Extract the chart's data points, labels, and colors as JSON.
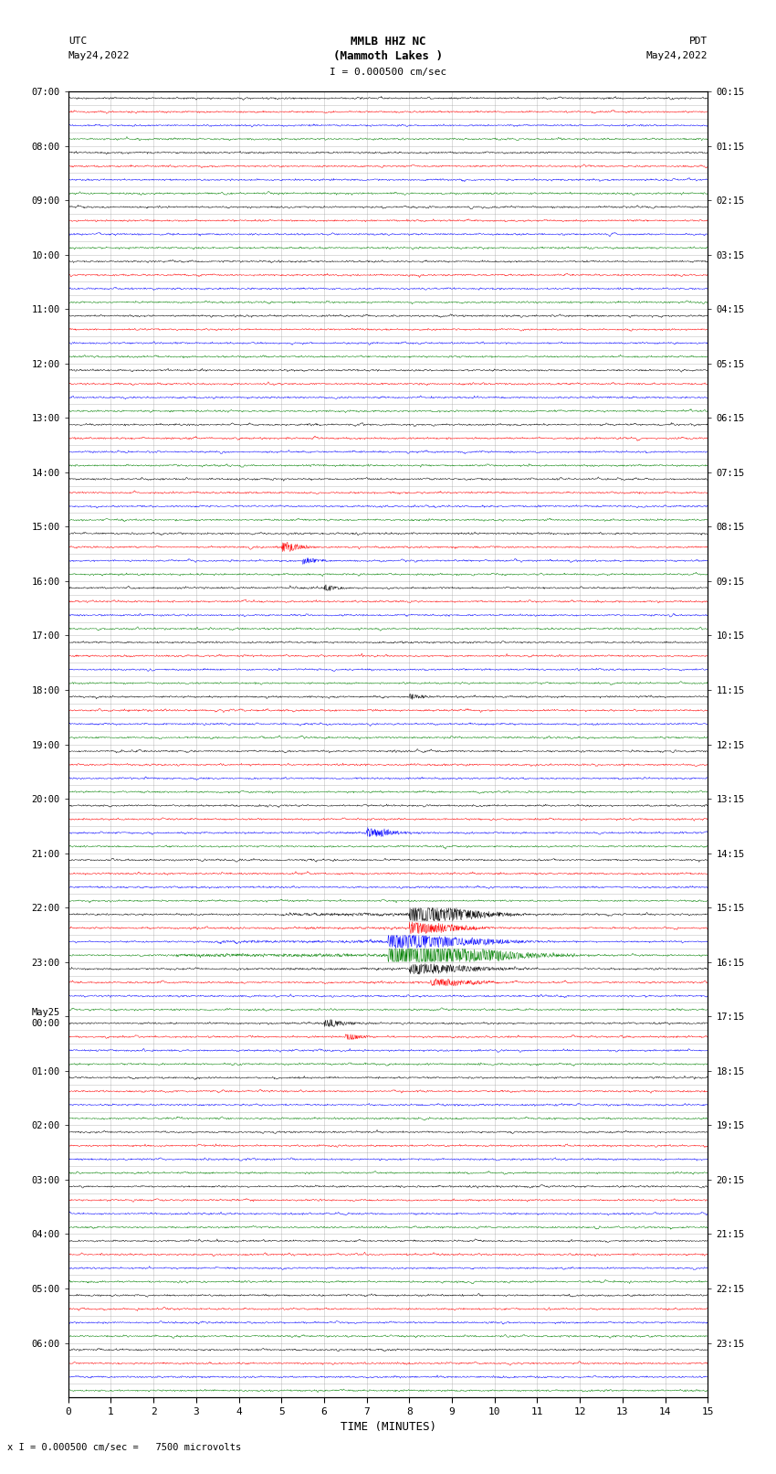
{
  "title_line1": "MMLB HHZ NC",
  "title_line2": "(Mammoth Lakes )",
  "scale_label": "I = 0.000500 cm/sec",
  "left_header": "UTC",
  "left_date": "May24,2022",
  "right_header": "PDT",
  "right_date": "May24,2022",
  "bottom_label": "TIME (MINUTES)",
  "bottom_note": "x I = 0.000500 cm/sec =   7500 microvolts",
  "utc_labels": [
    "07:00",
    "08:00",
    "09:00",
    "10:00",
    "11:00",
    "12:00",
    "13:00",
    "14:00",
    "15:00",
    "16:00",
    "17:00",
    "18:00",
    "19:00",
    "20:00",
    "21:00",
    "22:00",
    "23:00",
    "May25\n00:00",
    "01:00",
    "02:00",
    "03:00",
    "04:00",
    "05:00",
    "06:00"
  ],
  "pdt_labels": [
    "00:15",
    "01:15",
    "02:15",
    "03:15",
    "04:15",
    "05:15",
    "06:15",
    "07:15",
    "08:15",
    "09:15",
    "10:15",
    "11:15",
    "12:15",
    "13:15",
    "14:15",
    "15:15",
    "16:15",
    "17:15",
    "18:15",
    "19:15",
    "20:15",
    "21:15",
    "22:15",
    "23:15"
  ],
  "n_rows": 96,
  "row_colors": [
    "black",
    "red",
    "blue",
    "green"
  ],
  "x_min": 0,
  "x_max": 15,
  "x_ticks": [
    0,
    1,
    2,
    3,
    4,
    5,
    6,
    7,
    8,
    9,
    10,
    11,
    12,
    13,
    14,
    15
  ],
  "bg_color": "white",
  "grid_color": "#999999",
  "seed": 12345
}
